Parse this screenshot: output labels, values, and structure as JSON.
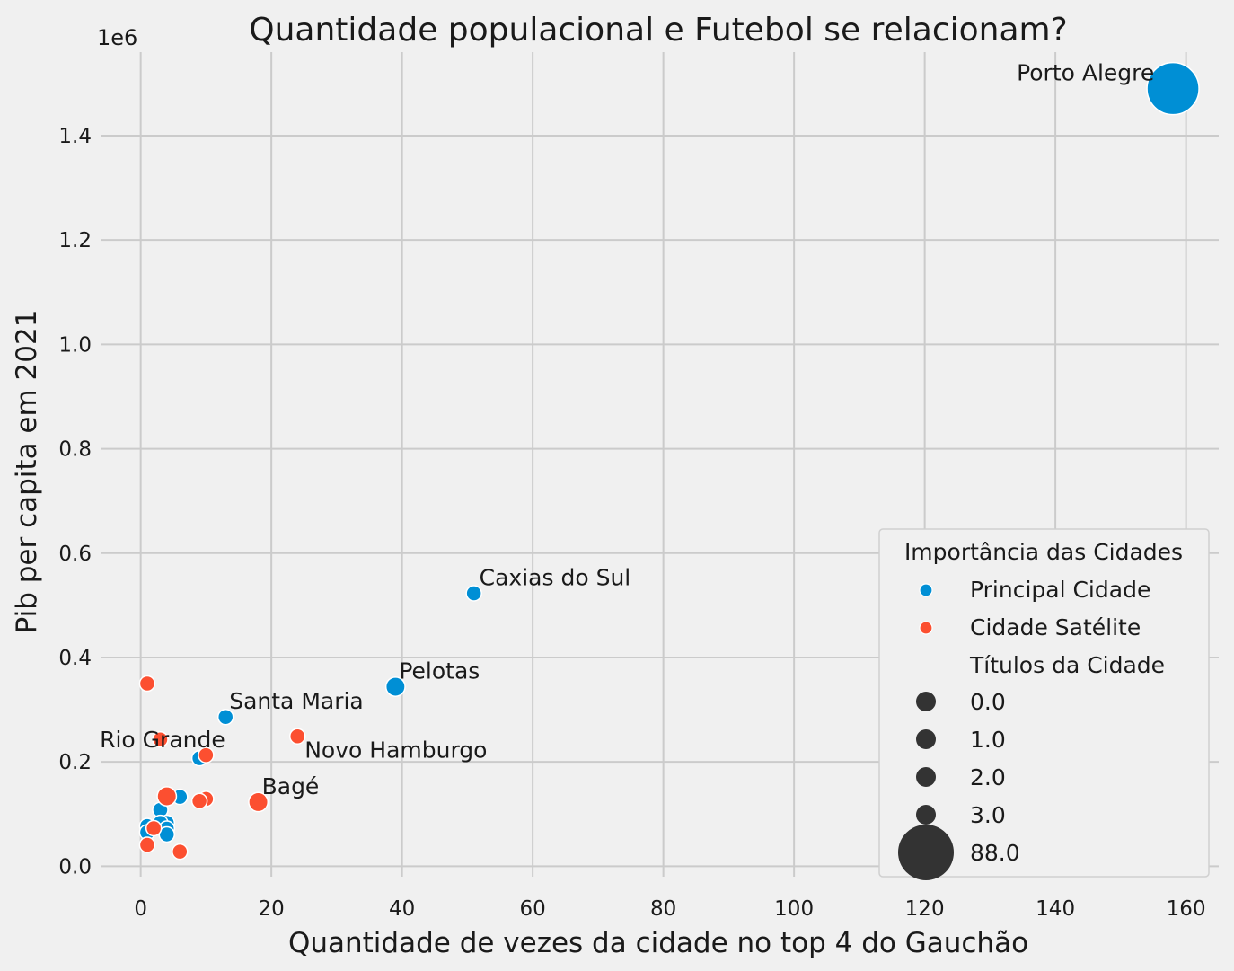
{
  "chart_data": {
    "type": "scatter",
    "title": "Quantidade populacional e Futebol se relacionam?",
    "xlabel": "Quantidade de vezes da cidade no top 4 do Gauchão",
    "ylabel": "Pib per capita em 2021",
    "y_offset_label": "1e6",
    "xlim": [
      -6,
      165
    ],
    "ylim": [
      -0.02,
      1.56
    ],
    "x_ticks": [
      0,
      20,
      40,
      60,
      80,
      100,
      120,
      140,
      160
    ],
    "y_ticks": [
      0.0,
      0.2,
      0.4,
      0.6,
      0.8,
      1.0,
      1.2,
      1.4
    ],
    "y_tick_labels": [
      "0.0",
      "0.2",
      "0.4",
      "0.6",
      "0.8",
      "1.0",
      "1.2",
      "1.4"
    ],
    "grid": true,
    "legend_position": "bottom-right",
    "colors": {
      "Principal Cidade": "#008fd5",
      "Cidade Satélite": "#fc4f30"
    },
    "legend": {
      "hue_title": "Importância das Cidades",
      "hue_entries": [
        "Principal Cidade",
        "Cidade Satélite"
      ],
      "size_title": "Títulos da Cidade",
      "size_entries": [
        "0.0",
        "1.0",
        "2.0",
        "3.0",
        "88.0"
      ]
    },
    "points": [
      {
        "x": 158,
        "y": 1.49,
        "group": "Principal Cidade",
        "titles": 88,
        "label": "Porto Alegre"
      },
      {
        "x": 51,
        "y": 0.523,
        "group": "Principal Cidade",
        "titles": 0,
        "label": "Caxias do Sul"
      },
      {
        "x": 39,
        "y": 0.344,
        "group": "Principal Cidade",
        "titles": 1,
        "label": "Pelotas"
      },
      {
        "x": 13,
        "y": 0.286,
        "group": "Principal Cidade",
        "titles": 0,
        "label": "Santa Maria"
      },
      {
        "x": 9,
        "y": 0.207,
        "group": "Principal Cidade",
        "titles": 0,
        "label": "Rio Grande"
      },
      {
        "x": 6,
        "y": 0.133,
        "group": "Principal Cidade",
        "titles": 0
      },
      {
        "x": 3,
        "y": 0.108,
        "group": "Principal Cidade",
        "titles": 0
      },
      {
        "x": 4,
        "y": 0.083,
        "group": "Principal Cidade",
        "titles": 0
      },
      {
        "x": 1,
        "y": 0.077,
        "group": "Principal Cidade",
        "titles": 0
      },
      {
        "x": 3,
        "y": 0.083,
        "group": "Principal Cidade",
        "titles": 0
      },
      {
        "x": 4,
        "y": 0.072,
        "group": "Principal Cidade",
        "titles": 0
      },
      {
        "x": 1,
        "y": 0.065,
        "group": "Principal Cidade",
        "titles": 0
      },
      {
        "x": 4,
        "y": 0.061,
        "group": "Principal Cidade",
        "titles": 0
      },
      {
        "x": 24,
        "y": 0.249,
        "group": "Cidade Satélite",
        "titles": 0,
        "label": "Novo Hamburgo"
      },
      {
        "x": 18,
        "y": 0.123,
        "group": "Cidade Satélite",
        "titles": 1,
        "label": "Bagé"
      },
      {
        "x": 1,
        "y": 0.35,
        "group": "Cidade Satélite",
        "titles": 0
      },
      {
        "x": 3,
        "y": 0.243,
        "group": "Cidade Satélite",
        "titles": 0
      },
      {
        "x": 10,
        "y": 0.213,
        "group": "Cidade Satélite",
        "titles": 0
      },
      {
        "x": 4,
        "y": 0.134,
        "group": "Cidade Satélite",
        "titles": 1
      },
      {
        "x": 10,
        "y": 0.129,
        "group": "Cidade Satélite",
        "titles": 0
      },
      {
        "x": 9,
        "y": 0.125,
        "group": "Cidade Satélite",
        "titles": 0
      },
      {
        "x": 2,
        "y": 0.073,
        "group": "Cidade Satélite",
        "titles": 0
      },
      {
        "x": 1,
        "y": 0.041,
        "group": "Cidade Satélite",
        "titles": 0
      },
      {
        "x": 6,
        "y": 0.028,
        "group": "Cidade Satélite",
        "titles": 0
      }
    ]
  }
}
